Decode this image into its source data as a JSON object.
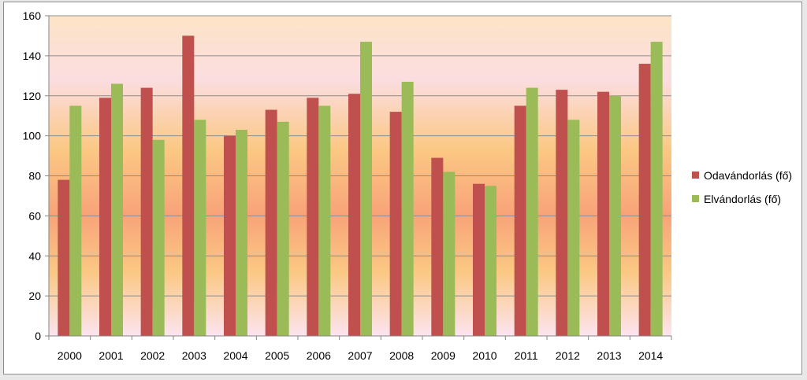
{
  "chart_data": {
    "type": "bar",
    "categories": [
      "2000",
      "2001",
      "2002",
      "2003",
      "2004",
      "2005",
      "2006",
      "2007",
      "2008",
      "2009",
      "2010",
      "2011",
      "2012",
      "2013",
      "2014"
    ],
    "series": [
      {
        "name": "Odavándorlás (fő)",
        "color": "#c0504d",
        "values": [
          78,
          119,
          124,
          150,
          100,
          113,
          119,
          121,
          112,
          89,
          76,
          115,
          123,
          122,
          136
        ]
      },
      {
        "name": "Elvándorlás (fő)",
        "color": "#9bbb59",
        "values": [
          115,
          126,
          98,
          108,
          103,
          107,
          115,
          147,
          127,
          82,
          75,
          124,
          108,
          120,
          147
        ]
      }
    ],
    "ylim": [
      0,
      160
    ],
    "yticks": [
      "0",
      "20",
      "40",
      "60",
      "80",
      "100",
      "120",
      "140",
      "160"
    ],
    "grid": true,
    "legend_position": "right",
    "title": "",
    "xlabel": "",
    "ylabel": ""
  }
}
